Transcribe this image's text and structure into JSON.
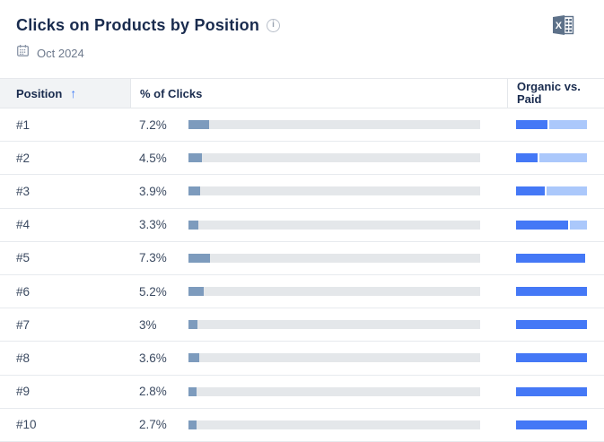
{
  "widget": {
    "title": "Clicks on Products by Position",
    "date": "Oct 2024"
  },
  "icons": {
    "info_glyph": "i",
    "calendar": "calendar-icon",
    "excel_export": "excel-export-icon",
    "excel_letter": "X"
  },
  "table": {
    "columns": {
      "position": "Position",
      "clicks": "% of Clicks",
      "organic_line1": "Organic vs.",
      "organic_line2": "Paid"
    },
    "sort": {
      "column": "Position",
      "direction": "ascending",
      "glyph": "↑"
    }
  },
  "chart_data": {
    "type": "table",
    "title": "Clicks on Products by Position",
    "period": "Oct 2024",
    "columns": [
      "Position",
      "% of Clicks",
      "Organic vs. Paid"
    ],
    "clicks_bar_scale": [
      0,
      100
    ],
    "rows": [
      {
        "position": "#1",
        "pct_label": "7.2%",
        "pct": 7.2,
        "organic": 44,
        "paid": 56
      },
      {
        "position": "#2",
        "pct_label": "4.5%",
        "pct": 4.5,
        "organic": 30,
        "paid": 70
      },
      {
        "position": "#3",
        "pct_label": "3.9%",
        "pct": 3.9,
        "organic": 41,
        "paid": 59
      },
      {
        "position": "#4",
        "pct_label": "3.3%",
        "pct": 3.3,
        "organic": 74,
        "paid": 26
      },
      {
        "position": "#5",
        "pct_label": "7.3%",
        "pct": 7.3,
        "organic": 98,
        "paid": 2
      },
      {
        "position": "#6",
        "pct_label": "5.2%",
        "pct": 5.2,
        "organic": 100,
        "paid": 0
      },
      {
        "position": "#7",
        "pct_label": "3%",
        "pct": 3.0,
        "organic": 100,
        "paid": 0
      },
      {
        "position": "#8",
        "pct_label": "3.6%",
        "pct": 3.6,
        "organic": 100,
        "paid": 0
      },
      {
        "position": "#9",
        "pct_label": "2.8%",
        "pct": 2.8,
        "organic": 100,
        "paid": 0
      },
      {
        "position": "#10",
        "pct_label": "2.7%",
        "pct": 2.7,
        "organic": 100,
        "paid": 0
      }
    ]
  },
  "colors": {
    "accent_blue": "#3d7bf7",
    "organic_bar": "#4478f6",
    "paid_bar": "#abc8fb",
    "clicks_bar": "#7d9bbd",
    "bar_track": "#e4e7ea",
    "header_bg": "#f1f3f5",
    "title_text": "#192b4e",
    "cell_text": "#3b4a61",
    "muted_text": "#6e7a8d",
    "border": "#e7eaee"
  }
}
